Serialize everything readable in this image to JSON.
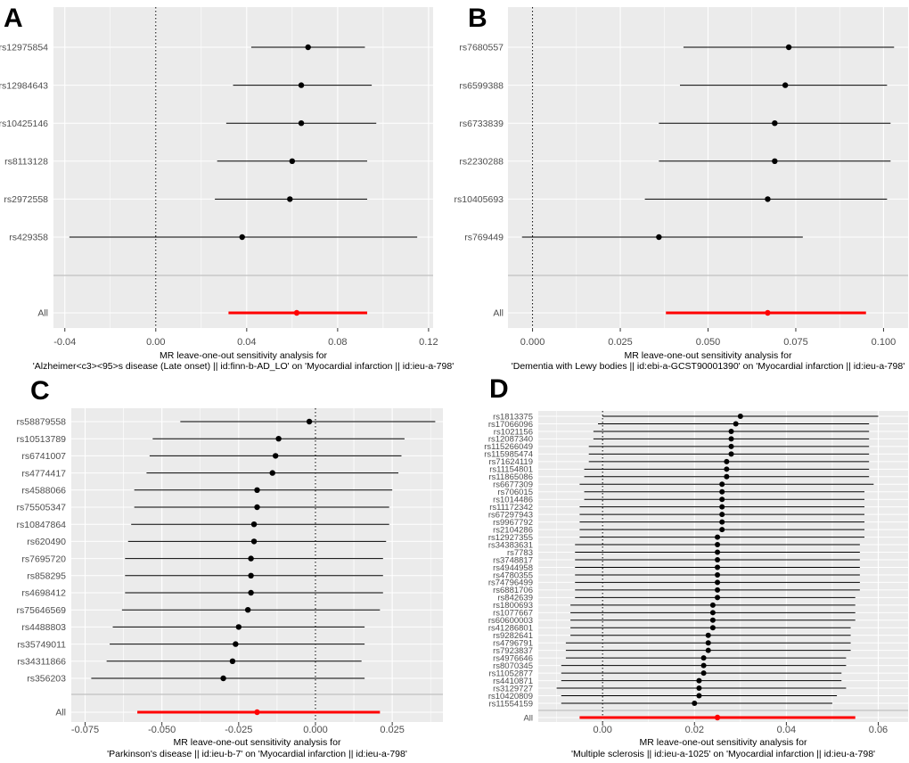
{
  "colors": {
    "panel": "#ebebeb",
    "grid": "#ffffff",
    "point": "#000000",
    "overall": "#ff0000",
    "separator": "#c0c0c0",
    "axis_text": "#4d4d4d"
  },
  "chart_data": [
    {
      "type": "forest",
      "panel_letter": "A",
      "title": "MR leave-one-out sensitivity analysis for",
      "subtitle": "'Alzheimer<c3><95>s disease (Late onset) || id:finn-b-AD_LO' on 'Myocardial infarction || id:ieu-a-798'",
      "xlim": [
        -0.045,
        0.122
      ],
      "xticks": [
        -0.04,
        0.0,
        0.04,
        0.08,
        0.12
      ],
      "xtick_labels": [
        "-0.04",
        "0.00",
        "0.04",
        "0.08",
        "0.12"
      ],
      "reference_line": 0,
      "snps": [
        {
          "label": "rs12975854",
          "estimate": 0.067,
          "lower": 0.042,
          "upper": 0.092
        },
        {
          "label": "rs12984643",
          "estimate": 0.064,
          "lower": 0.034,
          "upper": 0.095
        },
        {
          "label": "rs10425146",
          "estimate": 0.064,
          "lower": 0.031,
          "upper": 0.097
        },
        {
          "label": "rs8113128",
          "estimate": 0.06,
          "lower": 0.027,
          "upper": 0.093
        },
        {
          "label": "rs2972558",
          "estimate": 0.059,
          "lower": 0.026,
          "upper": 0.093
        },
        {
          "label": "rs429358",
          "estimate": 0.038,
          "lower": -0.038,
          "upper": 0.115
        }
      ],
      "overall": {
        "label": "All",
        "estimate": 0.062,
        "lower": 0.032,
        "upper": 0.093
      }
    },
    {
      "type": "forest",
      "panel_letter": "B",
      "title": "MR leave-one-out sensitivity analysis for",
      "subtitle": "'Dementia with Lewy bodies || id:ebi-a-GCST90001390' on 'Myocardial infarction || id:ieu-a-798'",
      "xlim": [
        -0.007,
        0.107
      ],
      "xticks": [
        0.0,
        0.025,
        0.05,
        0.075,
        0.1
      ],
      "xtick_labels": [
        "0.000",
        "0.025",
        "0.050",
        "0.075",
        "0.100"
      ],
      "reference_line": 0,
      "snps": [
        {
          "label": "rs7680557",
          "estimate": 0.073,
          "lower": 0.043,
          "upper": 0.103
        },
        {
          "label": "rs6599388",
          "estimate": 0.072,
          "lower": 0.042,
          "upper": 0.101
        },
        {
          "label": "rs6733839",
          "estimate": 0.069,
          "lower": 0.036,
          "upper": 0.102
        },
        {
          "label": "rs2230288",
          "estimate": 0.069,
          "lower": 0.036,
          "upper": 0.102
        },
        {
          "label": "rs10405693",
          "estimate": 0.067,
          "lower": 0.032,
          "upper": 0.101
        },
        {
          "label": "rs769449",
          "estimate": 0.036,
          "lower": -0.003,
          "upper": 0.077
        }
      ],
      "overall": {
        "label": "All",
        "estimate": 0.067,
        "lower": 0.038,
        "upper": 0.095
      }
    },
    {
      "type": "forest",
      "panel_letter": "C",
      "title": "MR leave-one-out sensitivity analysis for",
      "subtitle": "'Parkinson's disease || id:ieu-b-7' on 'Myocardial infarction || id:ieu-a-798'",
      "xlim": [
        -0.0795,
        0.0415
      ],
      "xticks": [
        -0.075,
        -0.05,
        -0.025,
        0.0,
        0.025
      ],
      "xtick_labels": [
        "-0.075",
        "-0.050",
        "-0.025",
        "0.000",
        "0.025"
      ],
      "reference_line": 0,
      "snps": [
        {
          "label": "rs58879558",
          "estimate": -0.002,
          "lower": -0.044,
          "upper": 0.039
        },
        {
          "label": "rs10513789",
          "estimate": -0.012,
          "lower": -0.053,
          "upper": 0.029
        },
        {
          "label": "rs6741007",
          "estimate": -0.013,
          "lower": -0.054,
          "upper": 0.028
        },
        {
          "label": "rs4774417",
          "estimate": -0.014,
          "lower": -0.055,
          "upper": 0.027
        },
        {
          "label": "rs4588066",
          "estimate": -0.019,
          "lower": -0.059,
          "upper": 0.025
        },
        {
          "label": "rs75505347",
          "estimate": -0.019,
          "lower": -0.059,
          "upper": 0.024
        },
        {
          "label": "rs10847864",
          "estimate": -0.02,
          "lower": -0.06,
          "upper": 0.024
        },
        {
          "label": "rs620490",
          "estimate": -0.02,
          "lower": -0.061,
          "upper": 0.023
        },
        {
          "label": "rs7695720",
          "estimate": -0.021,
          "lower": -0.062,
          "upper": 0.022
        },
        {
          "label": "rs858295",
          "estimate": -0.021,
          "lower": -0.062,
          "upper": 0.022
        },
        {
          "label": "rs4698412",
          "estimate": -0.021,
          "lower": -0.062,
          "upper": 0.022
        },
        {
          "label": "rs75646569",
          "estimate": -0.022,
          "lower": -0.063,
          "upper": 0.021
        },
        {
          "label": "rs4488803",
          "estimate": -0.025,
          "lower": -0.066,
          "upper": 0.016
        },
        {
          "label": "rs35749011",
          "estimate": -0.026,
          "lower": -0.067,
          "upper": 0.016
        },
        {
          "label": "rs34311866",
          "estimate": -0.027,
          "lower": -0.068,
          "upper": 0.015
        },
        {
          "label": "rs356203",
          "estimate": -0.03,
          "lower": -0.073,
          "upper": 0.016
        }
      ],
      "overall": {
        "label": "All",
        "estimate": -0.019,
        "lower": -0.058,
        "upper": 0.021
      }
    },
    {
      "type": "forest",
      "panel_letter": "D",
      "title": "MR leave-one-out sensitivity analysis for",
      "subtitle": "'Multiple sclerosis || id:ieu-a-1025' on 'Myocardial infarction || id:ieu-a-798'",
      "xlim": [
        -0.014,
        0.0665
      ],
      "xticks": [
        0.0,
        0.02,
        0.04,
        0.06
      ],
      "xtick_labels": [
        "0.00",
        "0.02",
        "0.04",
        "0.06"
      ],
      "reference_line": 0,
      "snps": [
        {
          "label": "rs1813375",
          "estimate": 0.03,
          "lower": 0.0,
          "upper": 0.06
        },
        {
          "label": "rs17066096",
          "estimate": 0.029,
          "lower": -0.001,
          "upper": 0.058
        },
        {
          "label": "rs1021156",
          "estimate": 0.028,
          "lower": -0.002,
          "upper": 0.058
        },
        {
          "label": "rs12087340",
          "estimate": 0.028,
          "lower": -0.002,
          "upper": 0.058
        },
        {
          "label": "rs115266049",
          "estimate": 0.028,
          "lower": -0.003,
          "upper": 0.058
        },
        {
          "label": "rs115985474",
          "estimate": 0.028,
          "lower": -0.003,
          "upper": 0.058
        },
        {
          "label": "rs71624119",
          "estimate": 0.027,
          "lower": -0.003,
          "upper": 0.058
        },
        {
          "label": "rs11154801",
          "estimate": 0.027,
          "lower": -0.004,
          "upper": 0.058
        },
        {
          "label": "rs11865086",
          "estimate": 0.027,
          "lower": -0.004,
          "upper": 0.058
        },
        {
          "label": "rs6677309",
          "estimate": 0.026,
          "lower": -0.005,
          "upper": 0.059
        },
        {
          "label": "rs706015",
          "estimate": 0.026,
          "lower": -0.004,
          "upper": 0.057
        },
        {
          "label": "rs1014486",
          "estimate": 0.026,
          "lower": -0.004,
          "upper": 0.057
        },
        {
          "label": "rs11172342",
          "estimate": 0.026,
          "lower": -0.005,
          "upper": 0.057
        },
        {
          "label": "rs67297943",
          "estimate": 0.026,
          "lower": -0.005,
          "upper": 0.057
        },
        {
          "label": "rs9967792",
          "estimate": 0.026,
          "lower": -0.005,
          "upper": 0.057
        },
        {
          "label": "rs2104286",
          "estimate": 0.026,
          "lower": -0.005,
          "upper": 0.057
        },
        {
          "label": "rs12927355",
          "estimate": 0.025,
          "lower": -0.005,
          "upper": 0.057
        },
        {
          "label": "rs34383631",
          "estimate": 0.025,
          "lower": -0.006,
          "upper": 0.056
        },
        {
          "label": "rs7783",
          "estimate": 0.025,
          "lower": -0.006,
          "upper": 0.056
        },
        {
          "label": "rs3748817",
          "estimate": 0.025,
          "lower": -0.006,
          "upper": 0.056
        },
        {
          "label": "rs4944958",
          "estimate": 0.025,
          "lower": -0.006,
          "upper": 0.056
        },
        {
          "label": "rs4780355",
          "estimate": 0.025,
          "lower": -0.006,
          "upper": 0.056
        },
        {
          "label": "rs74796499",
          "estimate": 0.025,
          "lower": -0.006,
          "upper": 0.056
        },
        {
          "label": "rs6881706",
          "estimate": 0.025,
          "lower": -0.006,
          "upper": 0.056
        },
        {
          "label": "rs842639",
          "estimate": 0.025,
          "lower": -0.006,
          "upper": 0.055
        },
        {
          "label": "rs1800693",
          "estimate": 0.024,
          "lower": -0.007,
          "upper": 0.055
        },
        {
          "label": "rs1077667",
          "estimate": 0.024,
          "lower": -0.007,
          "upper": 0.055
        },
        {
          "label": "rs60600003",
          "estimate": 0.024,
          "lower": -0.007,
          "upper": 0.055
        },
        {
          "label": "rs41286801",
          "estimate": 0.024,
          "lower": -0.007,
          "upper": 0.054
        },
        {
          "label": "rs9282641",
          "estimate": 0.023,
          "lower": -0.007,
          "upper": 0.054
        },
        {
          "label": "rs4796791",
          "estimate": 0.023,
          "lower": -0.008,
          "upper": 0.054
        },
        {
          "label": "rs7923837",
          "estimate": 0.023,
          "lower": -0.008,
          "upper": 0.054
        },
        {
          "label": "rs4976646",
          "estimate": 0.022,
          "lower": -0.008,
          "upper": 0.053
        },
        {
          "label": "rs8070345",
          "estimate": 0.022,
          "lower": -0.009,
          "upper": 0.053
        },
        {
          "label": "rs11052877",
          "estimate": 0.022,
          "lower": -0.009,
          "upper": 0.052
        },
        {
          "label": "rs4410871",
          "estimate": 0.021,
          "lower": -0.009,
          "upper": 0.052
        },
        {
          "label": "rs3129727",
          "estimate": 0.021,
          "lower": -0.01,
          "upper": 0.053
        },
        {
          "label": "rs10420809",
          "estimate": 0.021,
          "lower": -0.009,
          "upper": 0.051
        },
        {
          "label": "rs11554159",
          "estimate": 0.02,
          "lower": -0.009,
          "upper": 0.05
        }
      ],
      "overall": {
        "label": "All",
        "estimate": 0.025,
        "lower": -0.005,
        "upper": 0.055
      }
    }
  ]
}
